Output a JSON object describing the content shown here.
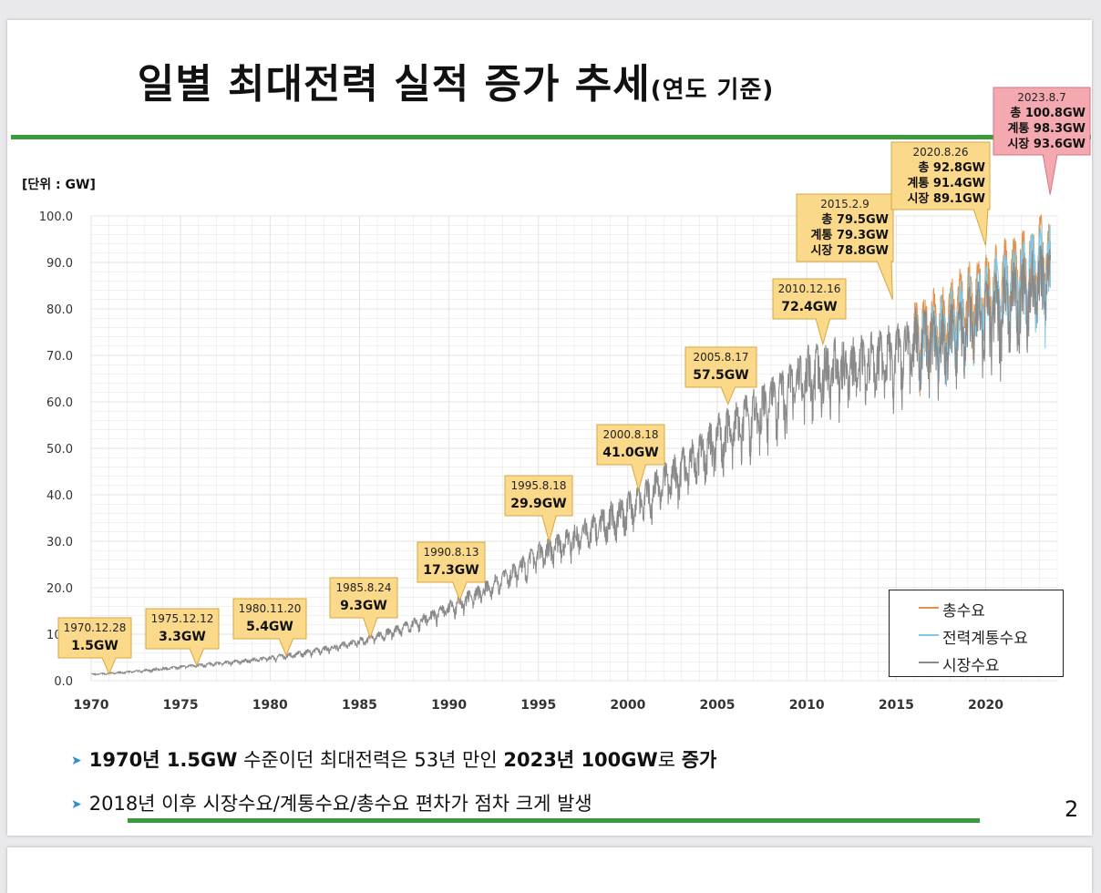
{
  "title": {
    "main": "일별 최대전력 실적 증가 추세",
    "sub": "(연도 기준)"
  },
  "unit_label": "[단위 : GW]",
  "chart_data": {
    "type": "line",
    "title": "일별 최대전력 실적 증가 추세(연도 기준)",
    "ylabel": "[단위 : GW]",
    "xlabel": "",
    "ylim": [
      0,
      100
    ],
    "xlim": [
      1970,
      2024
    ],
    "y_ticks": [
      "0.0",
      "10.0",
      "20.0",
      "30.0",
      "40.0",
      "50.0",
      "60.0",
      "70.0",
      "80.0",
      "90.0",
      "100.0"
    ],
    "x_ticks": [
      "1970",
      "1975",
      "1980",
      "1985",
      "1990",
      "1995",
      "2000",
      "2005",
      "2010",
      "2015",
      "2020"
    ],
    "grid": true,
    "legend_position": "bottom-right",
    "series": [
      {
        "name": "총수요",
        "color": "#e0934e"
      },
      {
        "name": "전력계통수요",
        "color": "#7fc8e6"
      },
      {
        "name": "시장수요",
        "color": "#8a8a8a"
      }
    ],
    "annual_peaks": [
      {
        "year": 1970,
        "peak": 1.5
      },
      {
        "year": 1975,
        "peak": 3.3
      },
      {
        "year": 1980,
        "peak": 5.4
      },
      {
        "year": 1985,
        "peak": 9.3
      },
      {
        "year": 1990,
        "peak": 17.3
      },
      {
        "year": 1995,
        "peak": 29.9
      },
      {
        "year": 2000,
        "peak": 41.0
      },
      {
        "year": 2005,
        "peak": 57.5
      },
      {
        "year": 2010,
        "peak": 72.4
      },
      {
        "year": 2015,
        "peak": 79.5
      },
      {
        "year": 2020,
        "peak": 92.8
      },
      {
        "year": 2023,
        "peak": 100.8
      }
    ],
    "annotations": [
      {
        "date": "1970.12.28",
        "lines": [
          "1.5GW"
        ],
        "anchor_year": 1971.0,
        "anchor_value": 1.5
      },
      {
        "date": "1975.12.12",
        "lines": [
          "3.3GW"
        ],
        "anchor_year": 1975.9,
        "anchor_value": 3.3
      },
      {
        "date": "1980.11.20",
        "lines": [
          "5.4GW"
        ],
        "anchor_year": 1980.9,
        "anchor_value": 5.4
      },
      {
        "date": "1985.8.24",
        "lines": [
          "9.3GW"
        ],
        "anchor_year": 1985.6,
        "anchor_value": 9.3
      },
      {
        "date": "1990.8.13",
        "lines": [
          "17.3GW"
        ],
        "anchor_year": 1990.6,
        "anchor_value": 17.3
      },
      {
        "date": "1995.8.18",
        "lines": [
          "29.9GW"
        ],
        "anchor_year": 1995.6,
        "anchor_value": 29.9
      },
      {
        "date": "2000.8.18",
        "lines": [
          "41.0GW"
        ],
        "anchor_year": 2000.6,
        "anchor_value": 41.0
      },
      {
        "date": "2005.8.17",
        "lines": [
          "57.5GW"
        ],
        "anchor_year": 2005.6,
        "anchor_value": 59.5
      },
      {
        "date": "2010.12.16",
        "lines": [
          "72.4GW"
        ],
        "anchor_year": 2010.9,
        "anchor_value": 72.4
      },
      {
        "date": "2015.2.9",
        "lines": [
          "총 79.5GW",
          "계통 79.3GW",
          "시장 78.8GW"
        ],
        "anchor_year": 2014.8,
        "anchor_value": 82
      },
      {
        "date": "2020.8.26",
        "lines": [
          "총 92.8GW",
          "계통 91.4GW",
          "시장 89.1GW"
        ],
        "anchor_year": 2020.0,
        "anchor_value": 93.6
      },
      {
        "date": "2023.8.7",
        "lines": [
          "총 100.8GW",
          "계통 98.3GW",
          "시장 93.6GW"
        ],
        "anchor_year": 2023.6,
        "anchor_value": 104.6,
        "highlight": true
      }
    ]
  },
  "legend": {
    "items": [
      "총수요",
      "전력계통수요",
      "시장수요"
    ]
  },
  "bullets": {
    "b1": {
      "p1": "1970년 1.5GW",
      "p2": " 수준이던 최대전력은 53년 만인 ",
      "p3": "2023년 100GW",
      "p4": "로 ",
      "p5": "증가"
    },
    "b2": "2018년 이후 시장수요/계통수요/총수요 편차가 점차 크게 발생"
  },
  "page_number": "2",
  "colors": {
    "green_rule": "#3a9b3a",
    "callout_fill": "#fbd98a",
    "callout_stroke": "#d9a640",
    "callout_highlight_fill": "#f4a9b0",
    "callout_highlight_stroke": "#d9737f",
    "grid": "#e3e3e3",
    "line_market": "#8a8a8a",
    "line_total": "#e0934e",
    "line_system": "#7fc8e6"
  }
}
